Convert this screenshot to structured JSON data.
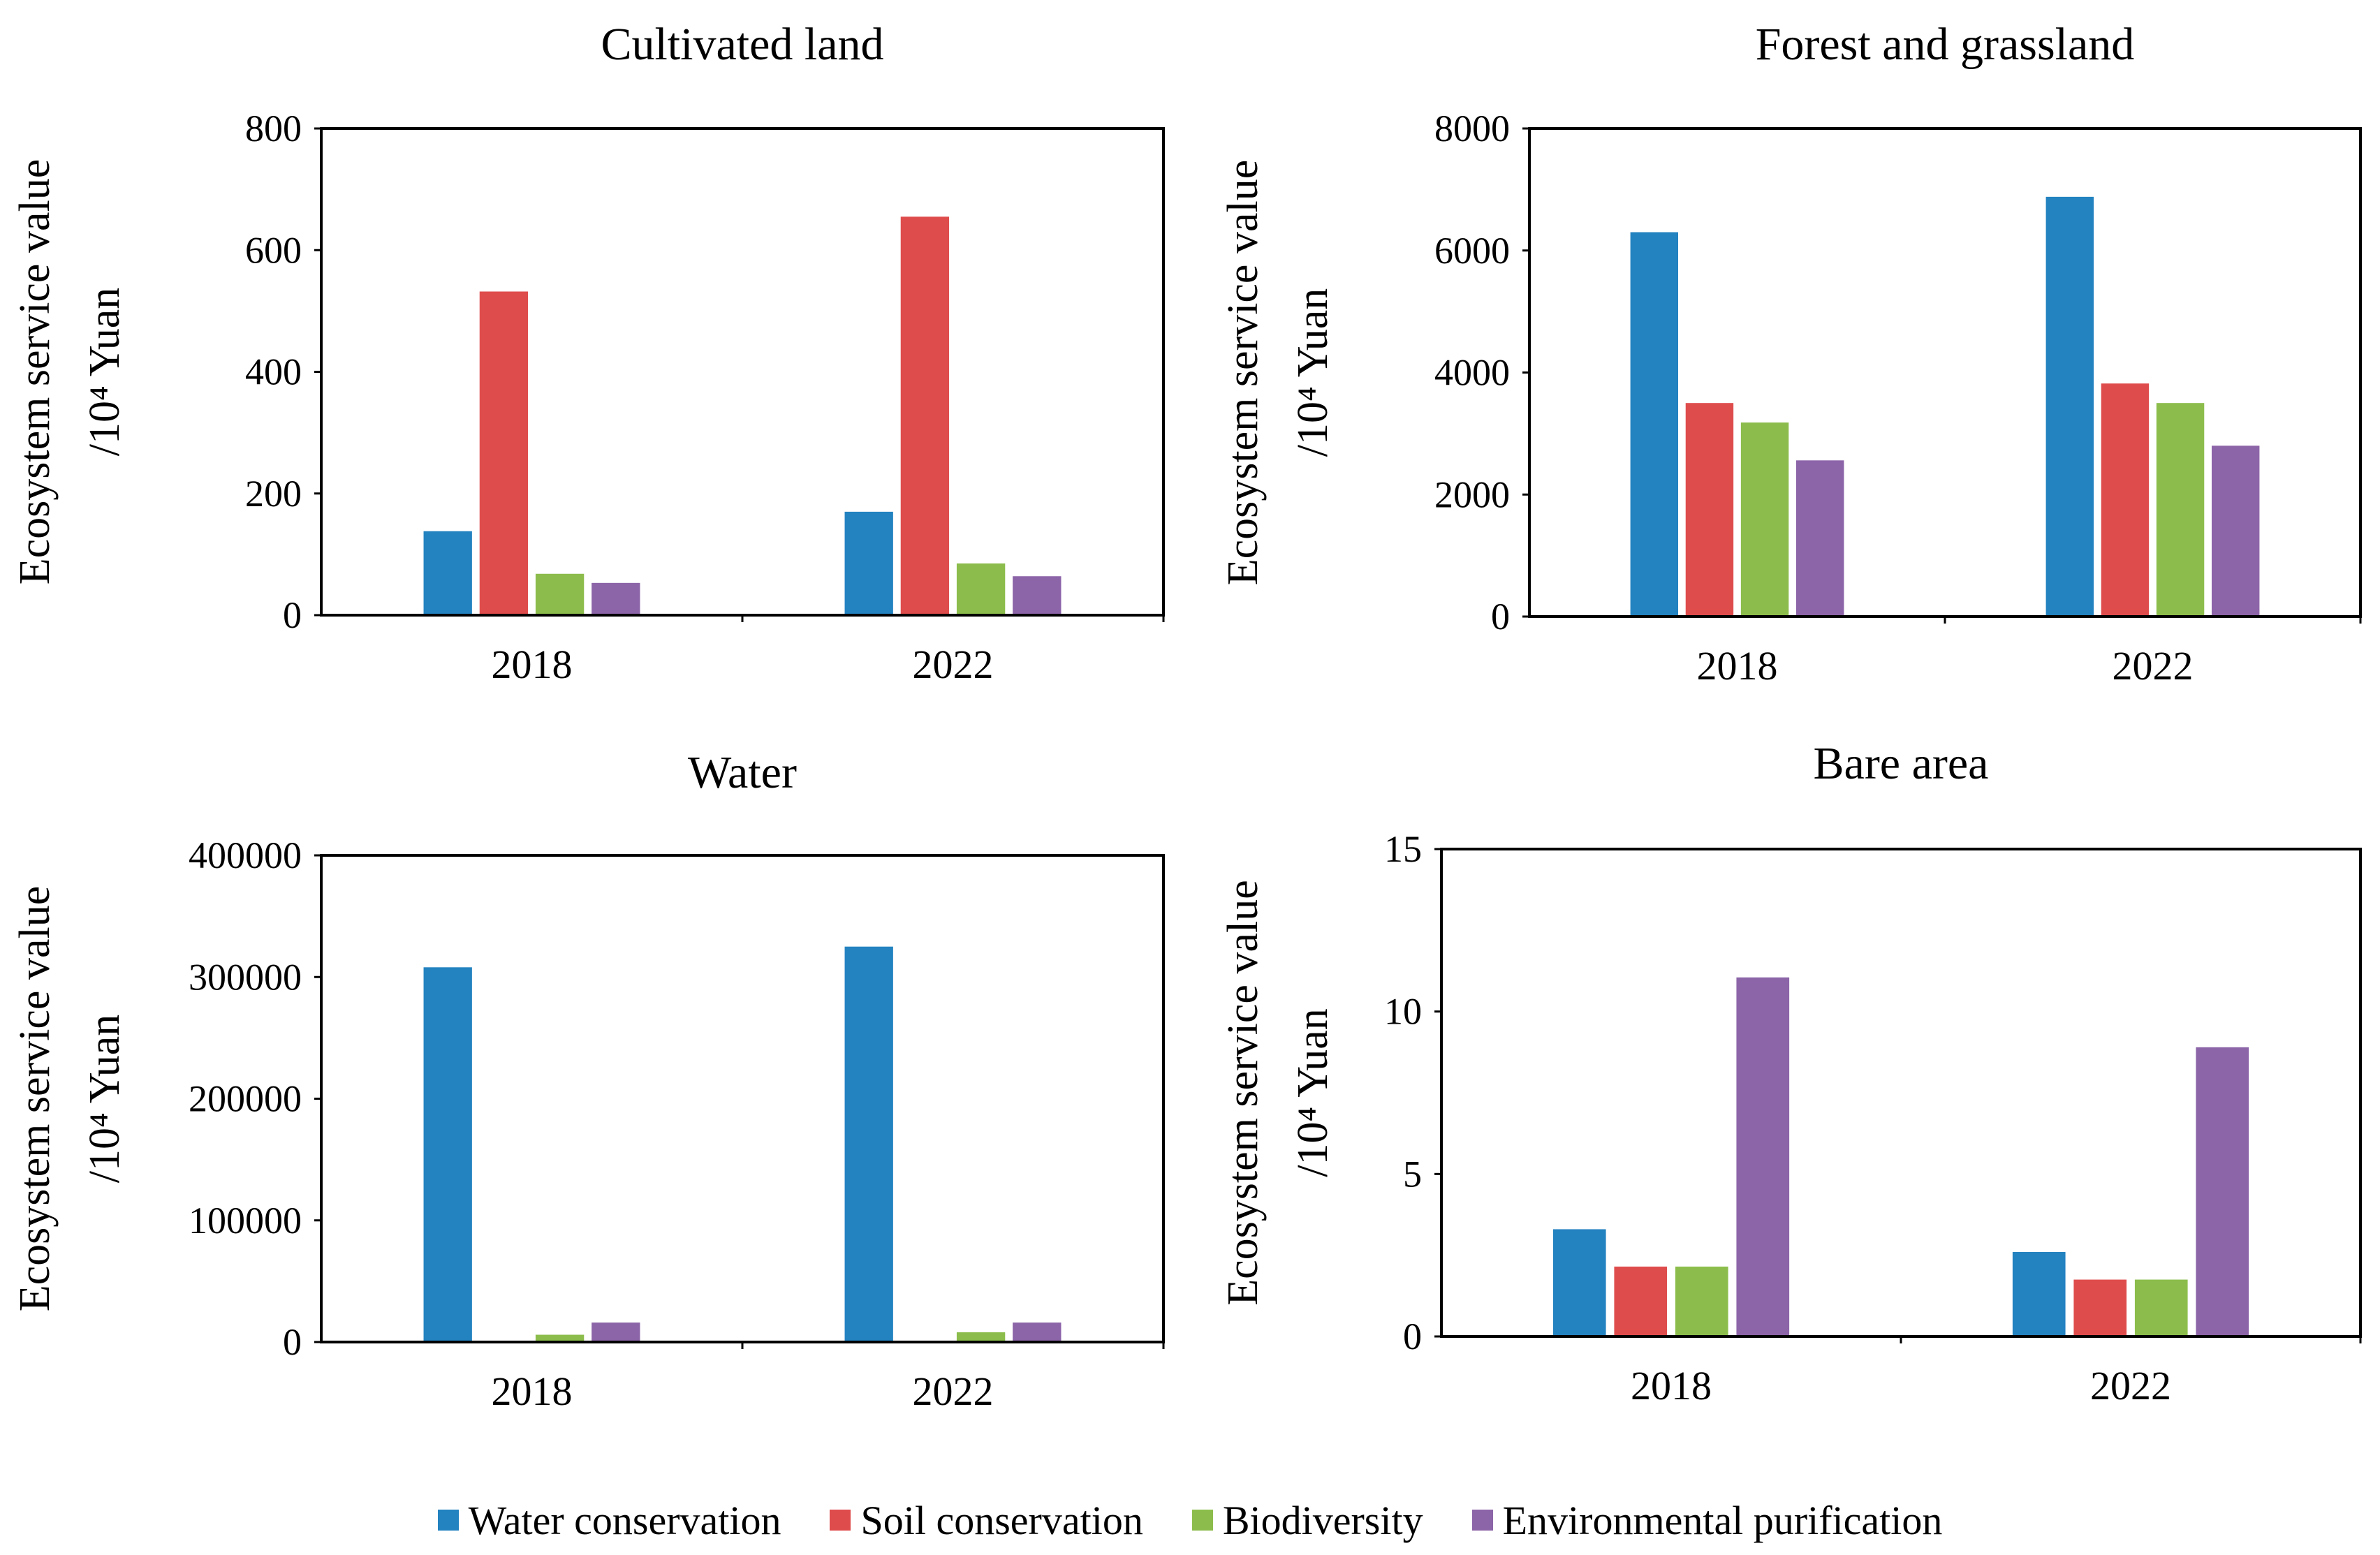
{
  "colors": {
    "water_conservation": "#2382C0",
    "soil_conservation": "#DF4C4C",
    "biodiversity": "#8CBD4C",
    "environmental_purification": "#8C64A8"
  },
  "legend": [
    {
      "label": "Water conservation",
      "color": "#2382C0"
    },
    {
      "label": "Soil conservation",
      "color": "#DF4C4C"
    },
    {
      "label": "Biodiversity",
      "color": "#8CBD4C"
    },
    {
      "label": "Environmental purification",
      "color": "#8C64A8"
    }
  ],
  "chart_data": [
    {
      "type": "bar",
      "title": "Cultivated land",
      "ylabel_line1": "Ecosystem service value",
      "ylabel_line2": "/10⁴ Yuan",
      "categories": [
        "2018",
        "2022"
      ],
      "ylim": [
        0,
        800
      ],
      "yticks": [
        "0",
        "200",
        "400",
        "600",
        "800"
      ],
      "series": [
        {
          "name": "Water conservation",
          "values": [
            138,
            170
          ]
        },
        {
          "name": "Soil conservation",
          "values": [
            532,
            655
          ]
        },
        {
          "name": "Biodiversity",
          "values": [
            68,
            85
          ]
        },
        {
          "name": "Environmental purification",
          "values": [
            53,
            64
          ]
        }
      ]
    },
    {
      "type": "bar",
      "title": "Forest and grassland",
      "ylabel_line1": "Ecosystem service value",
      "ylabel_line2": "/10⁴ Yuan",
      "categories": [
        "2018",
        "2022"
      ],
      "ylim": [
        0,
        8000
      ],
      "yticks": [
        "0",
        "2000",
        "4000",
        "6000",
        "8000"
      ],
      "series": [
        {
          "name": "Water conservation",
          "values": [
            6300,
            6880
          ]
        },
        {
          "name": "Soil conservation",
          "values": [
            3500,
            3820
          ]
        },
        {
          "name": "Biodiversity",
          "values": [
            3180,
            3500
          ]
        },
        {
          "name": "Environmental purification",
          "values": [
            2560,
            2800
          ]
        }
      ]
    },
    {
      "type": "bar",
      "title": "Water",
      "ylabel_line1": "Ecosystem service value",
      "ylabel_line2": "/10⁴ Yuan",
      "categories": [
        "2018",
        "2022"
      ],
      "ylim": [
        0,
        400000
      ],
      "yticks": [
        "0",
        "100000",
        "200000",
        "300000",
        "400000"
      ],
      "series": [
        {
          "name": "Water conservation",
          "values": [
            308000,
            325000
          ]
        },
        {
          "name": "Soil conservation",
          "values": [
            0,
            0
          ]
        },
        {
          "name": "Biodiversity",
          "values": [
            6000,
            8000
          ]
        },
        {
          "name": "Environmental purification",
          "values": [
            16000,
            16000
          ]
        }
      ]
    },
    {
      "type": "bar",
      "title": "Bare area",
      "ylabel_line1": "Ecosystem service value",
      "ylabel_line2": "/10⁴ Yuan",
      "categories": [
        "2018",
        "2022"
      ],
      "ylim": [
        0,
        15
      ],
      "yticks": [
        "0",
        "5",
        "10",
        "15"
      ],
      "series": [
        {
          "name": "Water conservation",
          "values": [
            3.3,
            2.6
          ]
        },
        {
          "name": "Soil conservation",
          "values": [
            2.15,
            1.75
          ]
        },
        {
          "name": "Biodiversity",
          "values": [
            2.15,
            1.75
          ]
        },
        {
          "name": "Environmental purification",
          "values": [
            11.05,
            8.9
          ]
        }
      ]
    }
  ]
}
